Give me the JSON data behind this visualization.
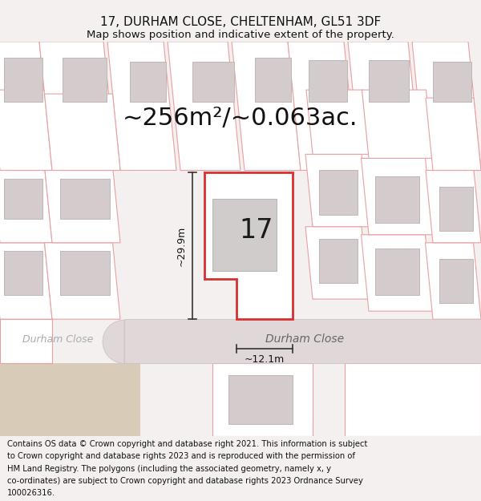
{
  "title_line1": "17, DURHAM CLOSE, CHELTENHAM, GL51 3DF",
  "title_line2": "Map shows position and indicative extent of the property.",
  "area_text": "~256m²/~0.063ac.",
  "label_17": "17",
  "dim_height": "~29.9m",
  "dim_width": "~12.1m",
  "street_name_main": "Durham Close",
  "street_name_left": "Durham Close",
  "footer_lines": [
    "Contains OS data © Crown copyright and database right 2021. This information is subject",
    "to Crown copyright and database rights 2023 and is reproduced with the permission of",
    "HM Land Registry. The polygons (including the associated geometry, namely x, y",
    "co-ordinates) are subject to Crown copyright and database rights 2023 Ordnance Survey",
    "100026316."
  ],
  "bg_color": "#f5f0f0",
  "map_bg": "#ffffff",
  "plot_red_edge": "#d63030",
  "plot_pink_edge": "#e8a0a0",
  "plot_fill": "#ffffff",
  "building_fill": "#d4cccc",
  "building_edge": "#c0b8b8",
  "road_fill": "#e0d8d8",
  "road_edge": "#c8c0c0",
  "road_cap_fill": "#ddd5d5",
  "sandy_fill": "#d8ccb8",
  "title_fontsize": 11,
  "subtitle_fontsize": 9.5,
  "area_fontsize": 22,
  "label_fontsize": 24,
  "dim_fontsize": 9,
  "street_fontsize": 10,
  "footer_fontsize": 7.2
}
